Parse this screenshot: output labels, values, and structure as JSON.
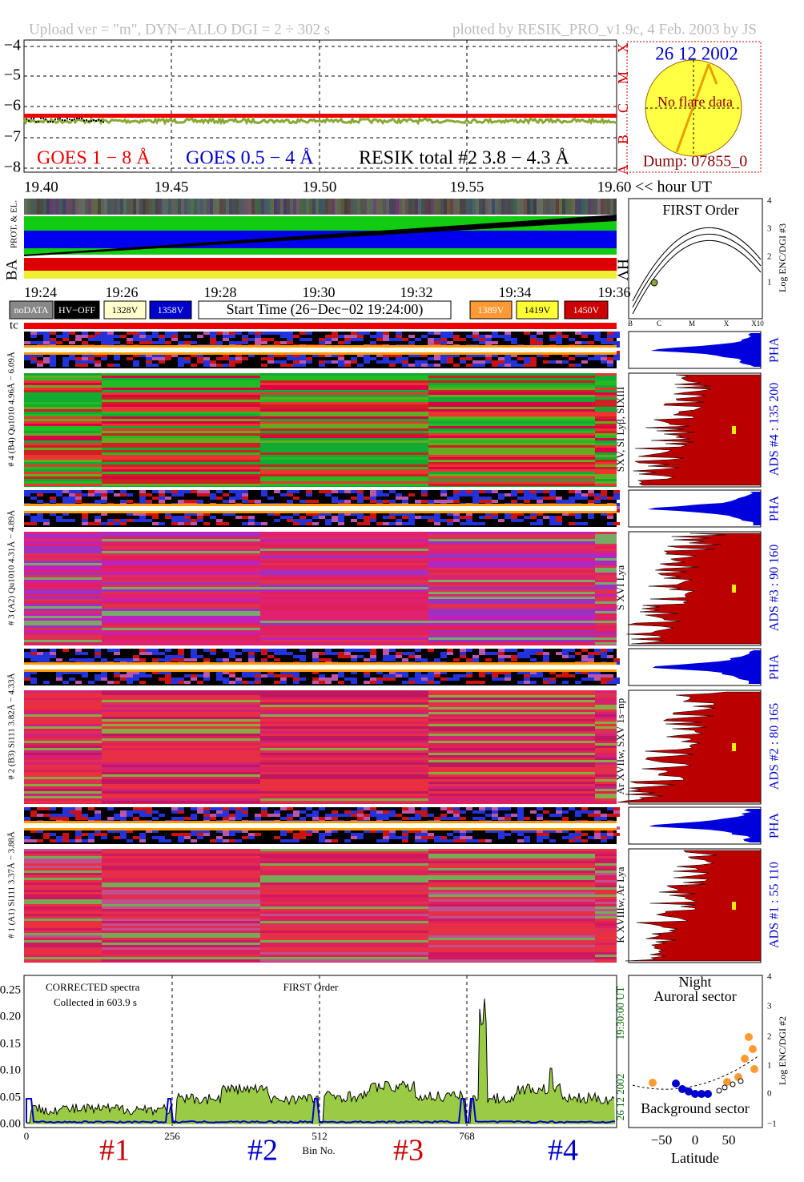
{
  "header": {
    "left": "Upload ver = \"m\", DYN−ALLO DGI =   2 ÷ 302 s",
    "right": "plotted by RESIK_PRO_v1.9c, 4 Feb. 2003 by JS"
  },
  "goes": {
    "yticks": [
      "−4",
      "−5",
      "−6",
      "−7",
      "−8"
    ],
    "classes": [
      "X",
      "M",
      "C",
      "B",
      "A"
    ],
    "legend": [
      "GOES 1 − 8 Å",
      "GOES 0.5 − 4 Å",
      "RESIK total #2  3.8 − 4.3 Å"
    ],
    "xticks": [
      "19.40",
      "19.45",
      "19.50",
      "19.55",
      "19.60"
    ],
    "x_unit": "<< hour UT"
  },
  "sun": {
    "date": "26 12 2002",
    "note": "No flare data",
    "dump": "Dump: 07855_0"
  },
  "strip": {
    "top_label": "PROT. & EL.",
    "ba": "BA",
    "hv": "HV",
    "times": [
      "19:24",
      "19:26",
      "19:28",
      "19:30",
      "19:32",
      "19:34",
      "19:36"
    ]
  },
  "legend_boxes": [
    "noDATA",
    "HV−OFF",
    "1328V",
    "1358V",
    "Start Time (26−Dec−02 19:24:00)",
    "1389V",
    "1419V",
    "1450V"
  ],
  "first_order": {
    "title": "FIRST Order",
    "axis": "Log ENC/DGI #3",
    "yticks": [
      "1",
      "2",
      "3",
      "4"
    ],
    "xticks": [
      "B",
      "C",
      "M",
      "X",
      "X10"
    ]
  },
  "tc": "tc",
  "pha": "PHA",
  "channels": [
    {
      "label": "# 4 (B4) Qu1010 4.96Å − 6.09Å",
      "lines": "SXV, SI Lyβ, SIXIII",
      "ads": "ADS #4 :   135 200"
    },
    {
      "label": "# 3 (A2) Qu1010 4.31Å − 4.89Å",
      "lines": "S XVI Lya",
      "ads": "ADS #3 :   90 160"
    },
    {
      "label": "# 2 (B3) Si111 3.82Å − 4.33Å",
      "lines": "Ar XVIIw, SXV 1s−np",
      "ads": "ADS #2 :   80 165"
    },
    {
      "label": "# 1 (A1) Si111 3.37Å − 3.88Å",
      "lines": "K XVIIIw, Ar Lya",
      "ads": "ADS #1 :   55 110"
    }
  ],
  "spectrum": {
    "title": "CORRECTED spectra",
    "collected": "Collected in   603.9 s",
    "order": "FIRST Order",
    "yticks": [
      "0.25",
      "0.20",
      "0.15",
      "0.10",
      "0.05",
      "0.00"
    ],
    "xticks": [
      "0",
      "256",
      "512",
      "768"
    ],
    "x_label": "Bin No.",
    "sections": [
      "#1",
      "#2",
      "#3",
      "#4"
    ],
    "date": "26 12 2002",
    "time": "19:30:00 UT"
  },
  "orbit": {
    "title": "Night",
    "top": "Auroral sector",
    "bottom": "Background sector",
    "x_label": "Latitude",
    "xticks": [
      "−50",
      "0",
      "50"
    ],
    "yticks": [
      "−1",
      "0",
      "1",
      "2",
      "3",
      "4"
    ],
    "axis": "Log ENC/DGI #2"
  }
}
